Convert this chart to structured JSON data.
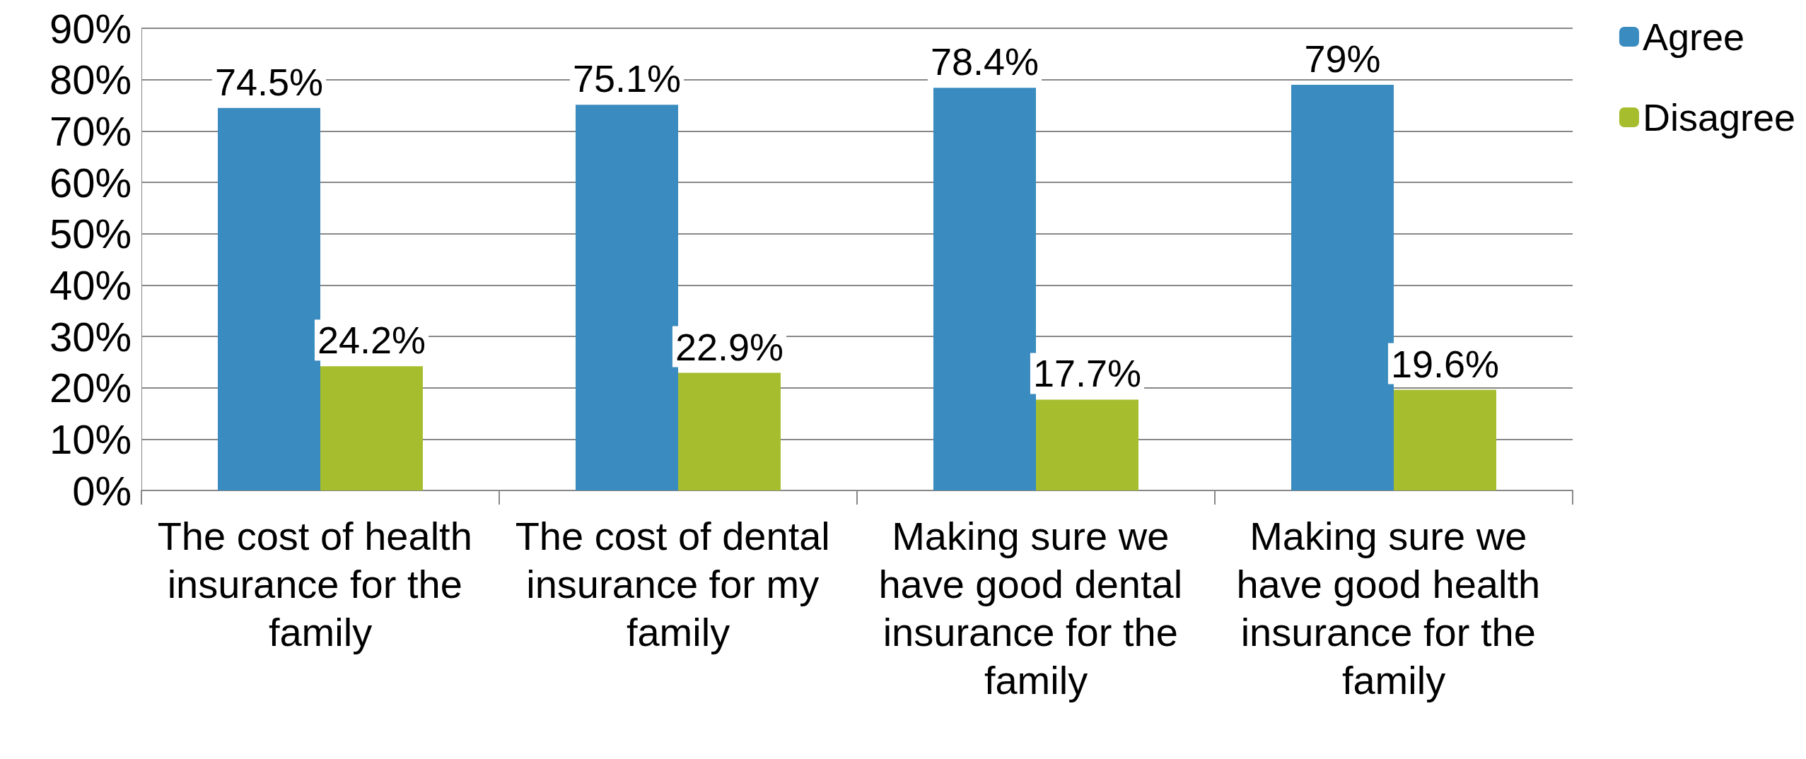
{
  "chart_data": {
    "type": "bar",
    "categories": [
      "The cost of health insurance for the family",
      "The cost of dental insurance for my family",
      "Making sure we have good dental insurance for the family",
      "Making sure we have good health insurance for the family"
    ],
    "series": [
      {
        "name": "Agree",
        "color": "#3a8bbf",
        "values": [
          74.5,
          75.1,
          78.4,
          79
        ],
        "value_labels": [
          "74.5%",
          "75.1%",
          "78.4%",
          "79%"
        ]
      },
      {
        "name": "Disagree",
        "color": "#a6be2e",
        "values": [
          24.2,
          22.9,
          17.7,
          19.6
        ],
        "value_labels": [
          "24.2%",
          "22.9%",
          "17.7%",
          "19.6%"
        ]
      }
    ],
    "ylim": [
      0,
      90
    ],
    "yticks": [
      {
        "value": 0,
        "label": "0%"
      },
      {
        "value": 10,
        "label": "10%"
      },
      {
        "value": 20,
        "label": "20%"
      },
      {
        "value": 30,
        "label": "30%"
      },
      {
        "value": 40,
        "label": "40%"
      },
      {
        "value": 50,
        "label": "50%"
      },
      {
        "value": 60,
        "label": "60%"
      },
      {
        "value": 70,
        "label": "70%"
      },
      {
        "value": 80,
        "label": "80%"
      },
      {
        "value": 90,
        "label": "90%"
      }
    ],
    "grid": "y",
    "legend": "top right"
  }
}
